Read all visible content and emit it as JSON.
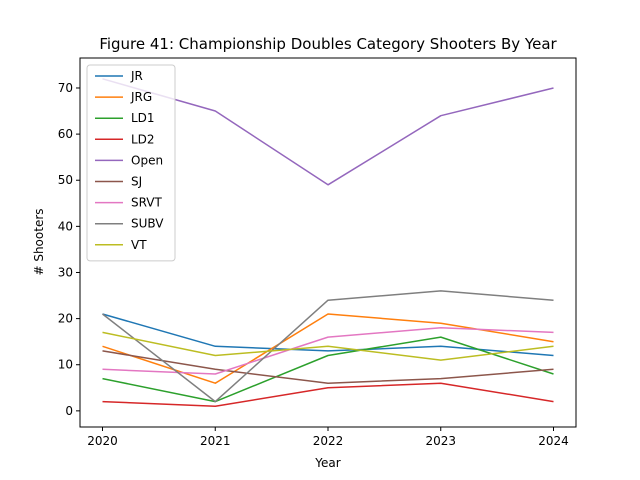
{
  "chart_data": {
    "type": "line",
    "title": "Figure 41: Championship Doubles Category Shooters By Year",
    "xlabel": "Year",
    "ylabel": "# Shooters",
    "x": [
      "2020",
      "2021",
      "2022",
      "2023",
      "2024"
    ],
    "ylim": [
      -3.5,
      76.5
    ],
    "yticks": [
      0,
      10,
      20,
      30,
      40,
      50,
      60,
      70
    ],
    "grid": false,
    "legend_position": "top-left",
    "series": [
      {
        "name": "JR",
        "color": "#1f77b4",
        "values": [
          21,
          14,
          13,
          14,
          12
        ]
      },
      {
        "name": "JRG",
        "color": "#ff7f0e",
        "values": [
          14,
          6,
          21,
          19,
          15
        ]
      },
      {
        "name": "LD1",
        "color": "#2ca02c",
        "values": [
          7,
          2,
          12,
          16,
          8
        ]
      },
      {
        "name": "LD2",
        "color": "#d62728",
        "values": [
          2,
          1,
          5,
          6,
          2
        ]
      },
      {
        "name": "Open",
        "color": "#9467bd",
        "values": [
          72,
          65,
          49,
          64,
          70
        ]
      },
      {
        "name": "SJ",
        "color": "#8c564b",
        "values": [
          13,
          9,
          6,
          7,
          9
        ]
      },
      {
        "name": "SRVT",
        "color": "#e377c2",
        "values": [
          9,
          8,
          16,
          18,
          17
        ]
      },
      {
        "name": "SUBV",
        "color": "#7f7f7f",
        "values": [
          21,
          2,
          24,
          26,
          24
        ]
      },
      {
        "name": "VT",
        "color": "#bcbd22",
        "values": [
          17,
          12,
          14,
          11,
          14
        ]
      }
    ]
  }
}
